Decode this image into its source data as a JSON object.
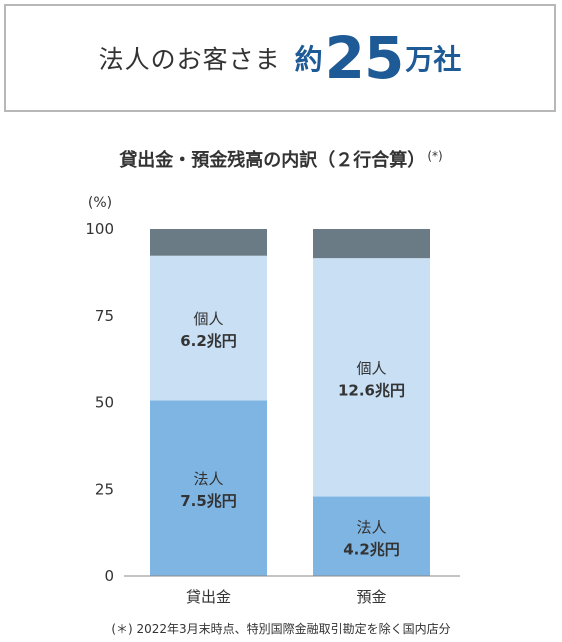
{
  "headline": {
    "text": "法人のお客さま",
    "prefix": "約",
    "number": "25",
    "suffix": "万社"
  },
  "chart_data": {
    "type": "bar",
    "stacked": true,
    "title": "貸出金・預金残高の内訳（２行合算）",
    "title_mark": "(*)",
    "ylabel": "(%)",
    "ylim": [
      0,
      100
    ],
    "yticks": [
      "0",
      "25",
      "50",
      "75",
      "100"
    ],
    "categories": [
      "貸出金",
      "預金"
    ],
    "series": [
      {
        "name": "法人",
        "values": [
          50.6,
          22.9
        ],
        "labels": [
          "7.5兆円",
          "4.2兆円"
        ],
        "color": "#7fb5e3"
      },
      {
        "name": "個人",
        "values": [
          41.7,
          68.7
        ],
        "labels": [
          "6.2兆円",
          "12.6兆円"
        ],
        "color": "#c8dff4"
      },
      {
        "name": "",
        "values": [
          7.7,
          8.4
        ],
        "labels": [
          "",
          ""
        ],
        "color": "#6b7b85"
      }
    ]
  },
  "footnote": "(＊) 2022年3月末時点、特別国際金融取引勘定を除く国内店分"
}
